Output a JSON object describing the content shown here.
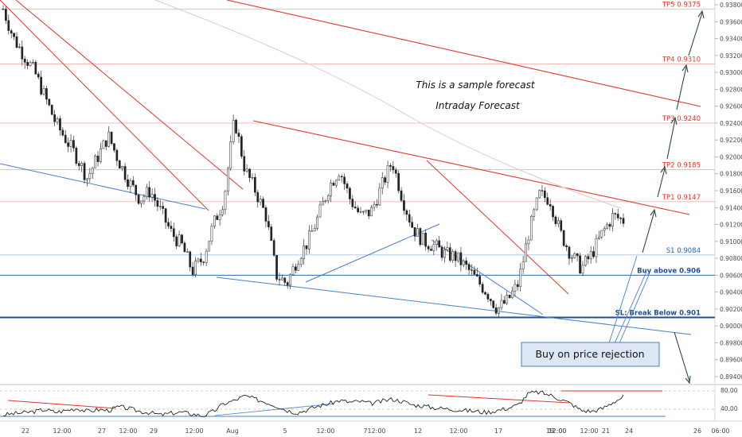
{
  "chart_data": {
    "type": "candlestick",
    "instrument": "",
    "y_axis": {
      "range": [
        0.893,
        0.9385
      ],
      "ticks": [
        "0.93800",
        "0.93600",
        "0.93400",
        "0.93200",
        "0.93000",
        "0.92800",
        "0.92600",
        "0.92400",
        "0.92200",
        "0.92000",
        "0.91800",
        "0.91600",
        "0.91400",
        "0.91200",
        "0.91000",
        "0.90800",
        "0.90600",
        "0.90400",
        "0.90200",
        "0.90000",
        "0.89800",
        "0.89600",
        "0.89400"
      ]
    },
    "x_axis": {
      "labels": [
        "22",
        "12:00",
        "27",
        "12:00",
        "29",
        "12:00",
        "Aug",
        "5",
        "12:00",
        "7",
        "12:00",
        "12",
        "12:00",
        "17",
        "12:00",
        "19",
        "12:00",
        "21",
        "12:00",
        "24",
        "26",
        "06:00"
      ]
    },
    "levels": [
      {
        "label": "TP5 0.9375",
        "value": 0.9375,
        "kind": "target"
      },
      {
        "label": "TP4 0.9310",
        "value": 0.931,
        "kind": "target"
      },
      {
        "label": "TP3 0.9240",
        "value": 0.924,
        "kind": "target"
      },
      {
        "label": "TP2 0.9185",
        "value": 0.9185,
        "kind": "target"
      },
      {
        "label": "TP1 0.9147",
        "value": 0.9147,
        "kind": "target"
      },
      {
        "label": "S1 0.9084",
        "value": 0.9084,
        "kind": "support"
      },
      {
        "label": "Buy above 0.906",
        "value": 0.906,
        "kind": "entry"
      },
      {
        "label": "SL: Break Below 0.901",
        "value": 0.901,
        "kind": "stop"
      }
    ],
    "price_path": [
      0.9375,
      0.934,
      0.932,
      0.93,
      0.927,
      0.924,
      0.922,
      0.92,
      0.9175,
      0.92,
      0.9225,
      0.9195,
      0.917,
      0.915,
      0.916,
      0.9135,
      0.911,
      0.9095,
      0.9065,
      0.908,
      0.912,
      0.915,
      0.9245,
      0.9185,
      0.916,
      0.913,
      0.906,
      0.905,
      0.908,
      0.91,
      0.913,
      0.9165,
      0.9185,
      0.915,
      0.913,
      0.9135,
      0.9165,
      0.9195,
      0.915,
      0.9115,
      0.91,
      0.9095,
      0.9085,
      0.9082,
      0.907,
      0.9055,
      0.904,
      0.902,
      0.903,
      0.905,
      0.911,
      0.9155,
      0.915,
      0.911,
      0.9085,
      0.9068,
      0.9085,
      0.911,
      0.913,
      0.9125
    ],
    "annotations": [
      "This is a sample forecast",
      "Intraday Forecast"
    ],
    "callout": "Buy on price rejection",
    "oscillator": {
      "ticks": [
        "80.00",
        "40.00"
      ],
      "values": [
        30,
        33,
        35,
        38,
        42,
        36,
        40,
        45,
        38,
        42,
        40,
        48,
        44,
        38,
        35,
        30,
        34,
        36,
        32,
        28,
        38,
        55,
        62,
        72,
        65,
        58,
        50,
        40,
        35,
        42,
        50,
        55,
        62,
        58,
        60,
        55,
        60,
        65,
        60,
        52,
        50,
        46,
        44,
        42,
        40,
        38,
        36,
        40,
        45,
        52,
        78,
        80,
        74,
        65,
        55,
        40,
        38,
        44,
        58,
        70
      ]
    },
    "grid": false
  }
}
